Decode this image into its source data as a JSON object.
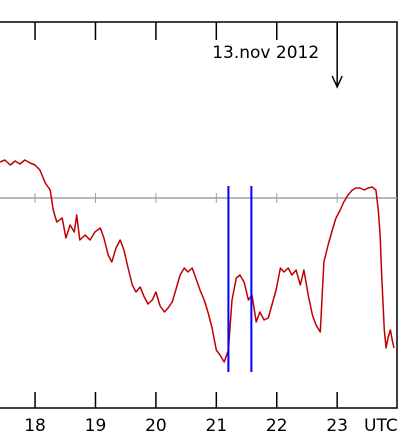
{
  "chart_data": {
    "type": "line",
    "annotation": {
      "text": "13.nov 2012",
      "x": 23
    },
    "x_label": "UTC",
    "color": "#c00000",
    "x": [
      17.42,
      17.5,
      17.59,
      17.67,
      17.75,
      17.83,
      17.92,
      18.0,
      18.08,
      18.17,
      18.25,
      18.3,
      18.36,
      18.45,
      18.51,
      18.58,
      18.65,
      18.69,
      18.74,
      18.83,
      18.91,
      18.99,
      19.08,
      19.14,
      19.21,
      19.27,
      19.34,
      19.41,
      19.47,
      19.54,
      19.61,
      19.67,
      19.74,
      19.8,
      19.87,
      19.94,
      20.0,
      20.07,
      20.14,
      20.2,
      20.27,
      20.33,
      20.4,
      20.47,
      20.53,
      20.6,
      20.66,
      20.73,
      20.8,
      20.86,
      20.93,
      21.0,
      21.06,
      21.13,
      21.2,
      21.26,
      21.33,
      21.39,
      21.46,
      21.53,
      21.59,
      21.66,
      21.72,
      21.79,
      21.86,
      21.92,
      21.99,
      22.06,
      22.12,
      22.19,
      22.25,
      22.32,
      22.39,
      22.45,
      22.52,
      22.59,
      22.65,
      22.72,
      22.78,
      22.85,
      22.92,
      22.98,
      23.05,
      23.11,
      23.18,
      23.25,
      23.31,
      23.38,
      23.45,
      23.51,
      23.58,
      23.64,
      23.68,
      23.71,
      23.74,
      23.78,
      23.81,
      23.84,
      23.88,
      23.91,
      23.94
    ],
    "values": [
      246,
      248,
      243,
      247,
      244,
      248,
      245,
      243,
      238,
      225,
      218,
      198,
      186,
      190,
      170,
      183,
      176,
      193,
      168,
      173,
      168,
      176,
      180,
      170,
      153,
      146,
      160,
      168,
      158,
      140,
      123,
      116,
      121,
      112,
      104,
      108,
      116,
      102,
      96,
      100,
      106,
      118,
      133,
      140,
      136,
      140,
      130,
      118,
      108,
      96,
      80,
      58,
      53,
      46,
      58,
      108,
      130,
      133,
      126,
      108,
      113,
      86,
      96,
      88,
      90,
      103,
      118,
      140,
      136,
      140,
      133,
      138,
      123,
      138,
      113,
      93,
      83,
      76,
      146,
      163,
      178,
      190,
      198,
      206,
      213,
      218,
      220,
      220,
      218,
      220,
      221,
      218,
      198,
      173,
      128,
      78,
      60,
      70,
      78,
      68,
      60
    ],
    "xlim": [
      17.42,
      23.99
    ],
    "xticks": [
      18,
      19,
      20,
      21,
      22,
      23
    ],
    "ylim": [
      0,
      386
    ],
    "reference_line": 210,
    "markers": {
      "color": "#0000ff",
      "x": [
        21.2,
        21.58
      ],
      "ylim": [
        36,
        222
      ]
    }
  }
}
